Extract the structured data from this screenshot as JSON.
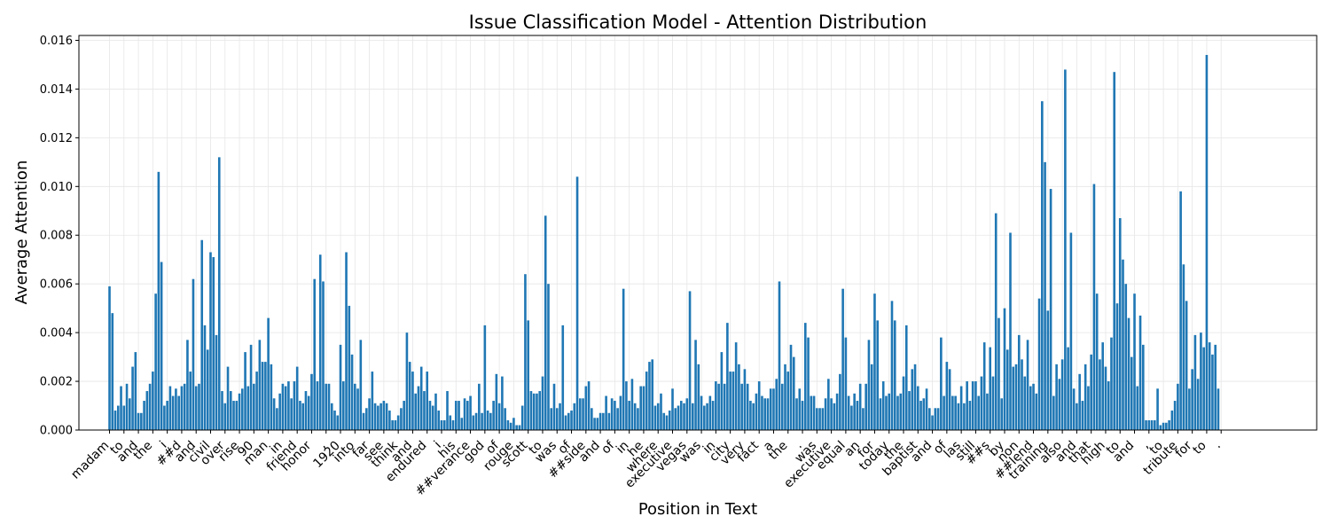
{
  "chart_data": {
    "type": "bar",
    "title": "Issue Classification Model - Attention Distribution",
    "xlabel": "Position in Text",
    "ylabel": "Average Attention",
    "ylim": [
      0,
      0.0162
    ],
    "xlim": [
      -10.6,
      418.1
    ],
    "grid": true,
    "bar_color": "#1f77b4",
    "yticks": [
      0,
      0.002,
      0.004,
      0.006,
      0.008,
      0.01,
      0.012,
      0.014,
      0.016
    ],
    "ytick_labels": [
      "0.000",
      "0.002",
      "0.004",
      "0.006",
      "0.008",
      "0.010",
      "0.012",
      "0.014",
      "0.016"
    ],
    "xtick_labels": [
      "madam",
      "to",
      "and",
      "the",
      "i",
      "##d",
      "and",
      "civil",
      "over",
      "rise",
      "90",
      "man",
      "in",
      "friend",
      "honor",
      ",",
      "1920",
      "into",
      "far",
      "see",
      "think",
      "and",
      "endured",
      "i",
      "his",
      "##verance",
      "god",
      "of",
      "rouge",
      "scott",
      "to",
      "was",
      "of",
      "##side",
      "and",
      "of",
      "in",
      "he",
      "where",
      "executive",
      "vegas",
      "was",
      "in",
      "city",
      "very",
      "fact",
      "a",
      "the",
      ".",
      "was",
      "executive",
      "equal",
      "an",
      "for",
      "today",
      "the",
      "baptist",
      "and",
      "of",
      "las",
      "still",
      "##s",
      "by",
      "non",
      "##lend",
      "training",
      "also",
      "and",
      "that",
      "high",
      "to",
      "and",
      ",",
      "to",
      "tribute",
      "for",
      "to",
      "."
    ],
    "xtick_step": 5,
    "values": [
      0.0059,
      0.0048,
      0.0008,
      0.001,
      0.0018,
      0.001,
      0.0019,
      0.0013,
      0.0026,
      0.0032,
      0.0007,
      0.0007,
      0.0012,
      0.0016,
      0.0019,
      0.0024,
      0.0056,
      0.0106,
      0.0069,
      0.001,
      0.0012,
      0.0018,
      0.0014,
      0.0017,
      0.0014,
      0.0018,
      0.0019,
      0.0037,
      0.0024,
      0.0062,
      0.0018,
      0.0019,
      0.0078,
      0.0043,
      0.0033,
      0.0073,
      0.0071,
      0.0039,
      0.0112,
      0.0016,
      0.0011,
      0.0026,
      0.0016,
      0.0012,
      0.0012,
      0.0015,
      0.0017,
      0.0032,
      0.0018,
      0.0035,
      0.0019,
      0.0024,
      0.0037,
      0.0028,
      0.0028,
      0.0046,
      0.0027,
      0.0013,
      0.0009,
      0.0015,
      0.0019,
      0.0018,
      0.002,
      0.0013,
      0.002,
      0.0026,
      0.0012,
      0.0011,
      0.0016,
      0.0014,
      0.0023,
      0.0062,
      0.002,
      0.0072,
      0.0061,
      0.0019,
      0.0019,
      0.0011,
      0.0008,
      0.0006,
      0.0035,
      0.002,
      0.0073,
      0.0051,
      0.0031,
      0.0019,
      0.0017,
      0.0037,
      0.0007,
      0.0009,
      0.0013,
      0.0024,
      0.0011,
      0.001,
      0.0011,
      0.0012,
      0.0011,
      0.0008,
      0.0004,
      0.0004,
      0.0006,
      0.0009,
      0.0012,
      0.004,
      0.0028,
      0.0024,
      0.0015,
      0.0018,
      0.0026,
      0.0016,
      0.0024,
      0.0012,
      0.001,
      0.0015,
      0.0008,
      0.0004,
      0.0004,
      0.0016,
      0.0006,
      0.0004,
      0.0012,
      0.0012,
      0.0005,
      0.0013,
      0.0012,
      0.0014,
      0.0006,
      0.0007,
      0.0019,
      0.0007,
      0.0043,
      0.0008,
      0.0007,
      0.0012,
      0.0023,
      0.0011,
      0.0022,
      0.0009,
      0.0004,
      0.0003,
      0.0005,
      0.0002,
      0.0002,
      0.001,
      0.0064,
      0.0045,
      0.0016,
      0.0015,
      0.0015,
      0.0016,
      0.0022,
      0.0088,
      0.006,
      0.0009,
      0.0019,
      0.0009,
      0.0011,
      0.0043,
      0.0006,
      0.0007,
      0.0008,
      0.0011,
      0.0104,
      0.0013,
      0.0013,
      0.0018,
      0.002,
      0.0009,
      0.0005,
      0.0005,
      0.0007,
      0.0007,
      0.0014,
      0.0007,
      0.0013,
      0.0012,
      0.0009,
      0.0014,
      0.0058,
      0.002,
      0.0012,
      0.0021,
      0.0011,
      0.0009,
      0.0018,
      0.0018,
      0.0024,
      0.0028,
      0.0029,
      0.001,
      0.0011,
      0.0015,
      0.0007,
      0.0006,
      0.0008,
      0.0017,
      0.0009,
      0.001,
      0.0012,
      0.0011,
      0.0013,
      0.0057,
      0.0011,
      0.0037,
      0.0027,
      0.0014,
      0.001,
      0.0011,
      0.0014,
      0.0012,
      0.002,
      0.0019,
      0.0032,
      0.0019,
      0.0044,
      0.0024,
      0.0024,
      0.0036,
      0.0027,
      0.0019,
      0.0025,
      0.0019,
      0.0012,
      0.0011,
      0.0015,
      0.002,
      0.0014,
      0.0013,
      0.0013,
      0.0017,
      0.0017,
      0.0021,
      0.0061,
      0.0019,
      0.0027,
      0.0024,
      0.0035,
      0.003,
      0.0013,
      0.0017,
      0.0012,
      0.0044,
      0.0038,
      0.0014,
      0.0014,
      0.0009,
      0.0009,
      0.0009,
      0.0013,
      0.0021,
      0.0013,
      0.0011,
      0.0015,
      0.0023,
      0.0058,
      0.0038,
      0.0014,
      0.001,
      0.0015,
      0.0012,
      0.0019,
      0.0009,
      0.0019,
      0.0037,
      0.0027,
      0.0056,
      0.0045,
      0.0013,
      0.002,
      0.0014,
      0.0015,
      0.0053,
      0.0045,
      0.0014,
      0.0015,
      0.0022,
      0.0043,
      0.0016,
      0.0025,
      0.0027,
      0.0018,
      0.0012,
      0.0013,
      0.0017,
      0.0009,
      0.0006,
      0.0009,
      0.0009,
      0.0038,
      0.0014,
      0.0028,
      0.0025,
      0.0014,
      0.0014,
      0.0011,
      0.0018,
      0.0011,
      0.002,
      0.0012,
      0.002,
      0.002,
      0.0014,
      0.0022,
      0.0036,
      0.0015,
      0.0034,
      0.0022,
      0.0089,
      0.0046,
      0.0013,
      0.005,
      0.0033,
      0.0081,
      0.0026,
      0.0027,
      0.0039,
      0.0029,
      0.0022,
      0.0037,
      0.0018,
      0.0019,
      0.0015,
      0.0054,
      0.0135,
      0.011,
      0.0049,
      0.0099,
      0.0014,
      0.0027,
      0.0021,
      0.0029,
      0.0148,
      0.0034,
      0.0081,
      0.0017,
      0.0011,
      0.0023,
      0.0012,
      0.0027,
      0.0018,
      0.0031,
      0.0101,
      0.0056,
      0.0029,
      0.0036,
      0.0026,
      0.002,
      0.0038,
      0.0147,
      0.0052,
      0.0087,
      0.007,
      0.006,
      0.0046,
      0.003,
      0.0056,
      0.0018,
      0.0047,
      0.0035,
      0.0004,
      0.0004,
      0.0004,
      0.0004,
      0.0017,
      0.0002,
      0.0003,
      0.0003,
      0.0004,
      0.0008,
      0.0012,
      0.0019,
      0.0098,
      0.0068,
      0.0053,
      0.0017,
      0.0025,
      0.0039,
      0.0021,
      0.004,
      0.0034,
      0.0154,
      0.0036,
      0.0031,
      0.0035,
      0.0017
    ]
  }
}
